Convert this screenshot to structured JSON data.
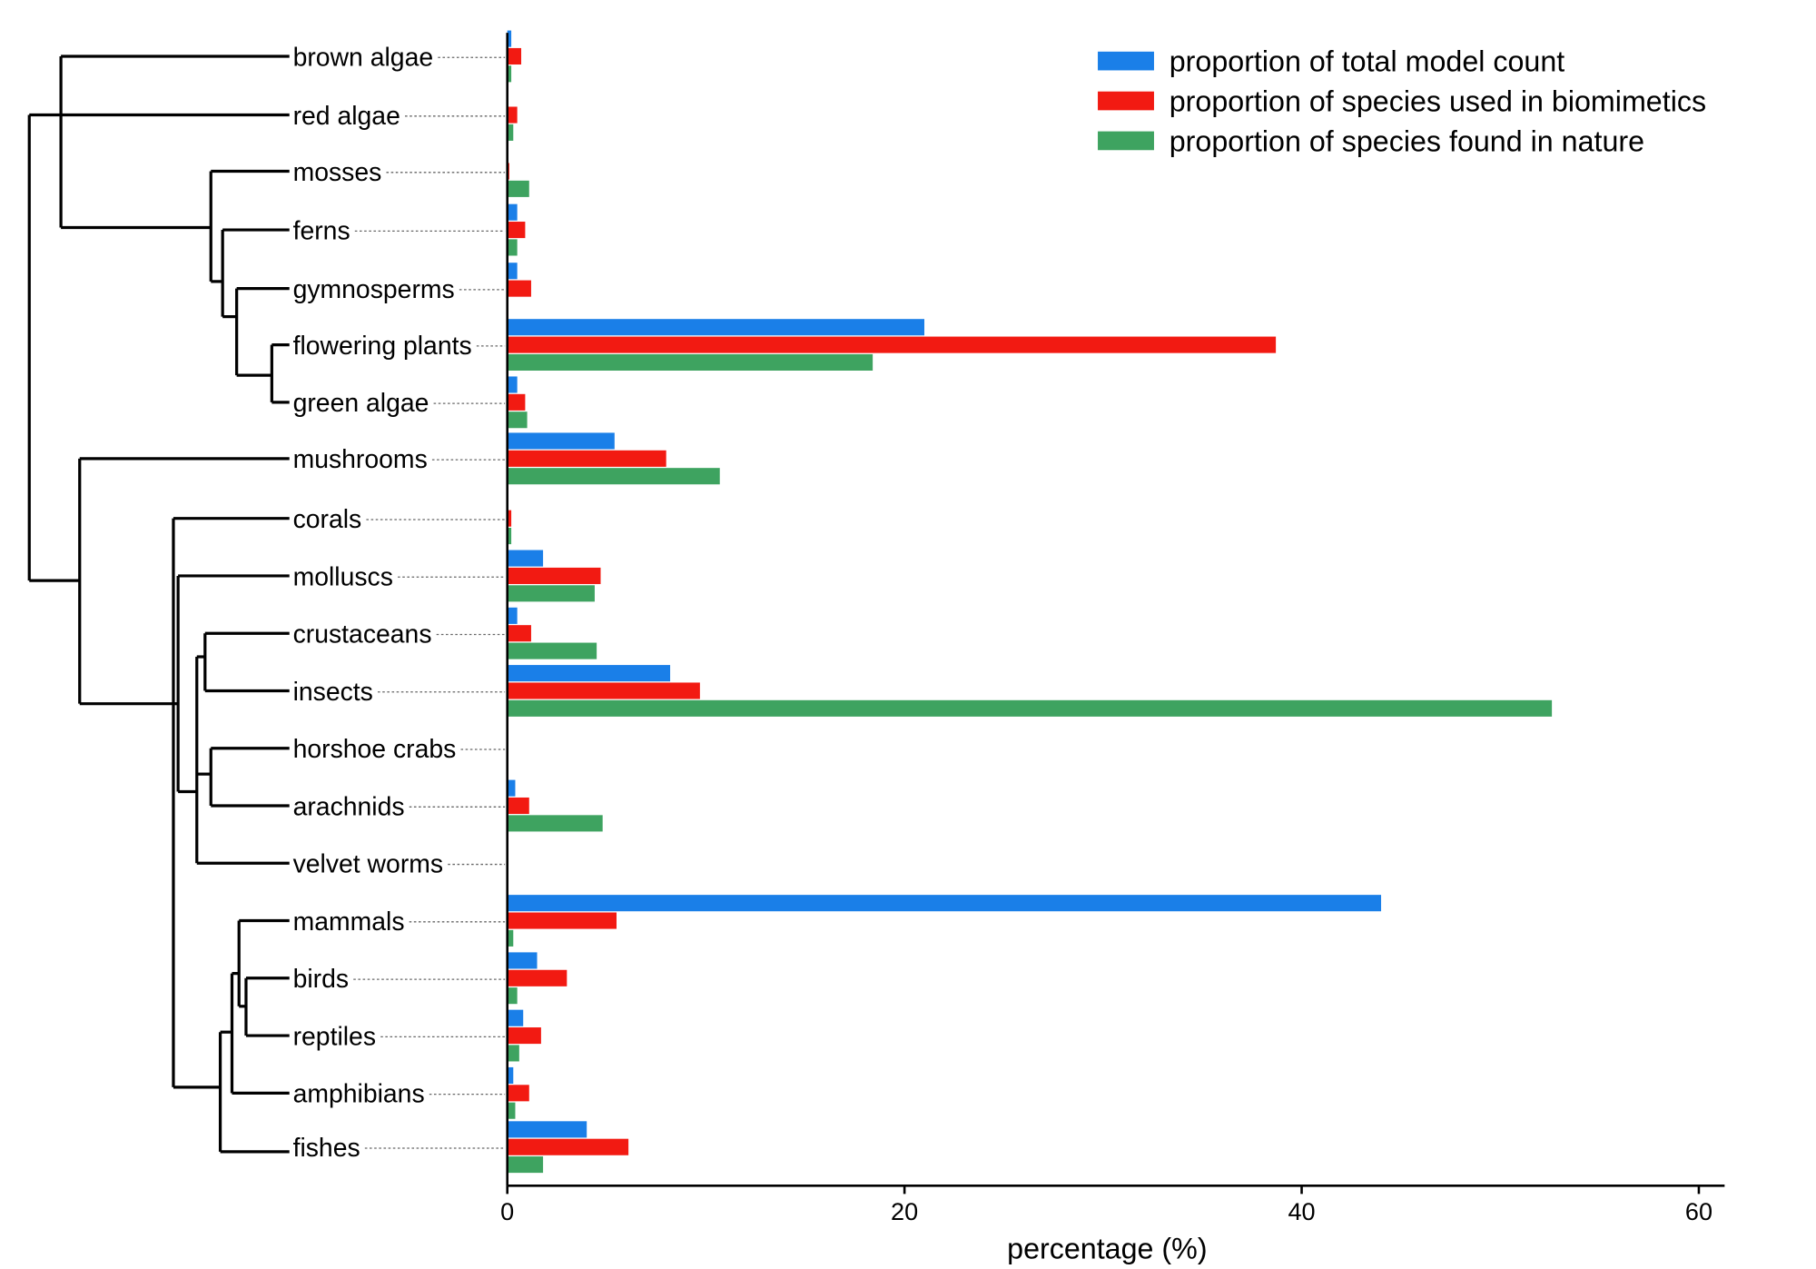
{
  "chart_data": {
    "type": "bar",
    "orientation": "horizontal",
    "xlabel": "percentage (%)",
    "xlim": [
      0,
      60
    ],
    "xticks": [
      "0",
      "20",
      "40",
      "60"
    ],
    "categories": [
      "brown algae",
      "red algae",
      "mosses",
      "ferns",
      "gymnosperms",
      "flowering plants",
      "green algae",
      "mushrooms",
      "corals",
      "molluscs",
      "crustaceans",
      "insects",
      "horshoe crabs",
      "arachnids",
      "velvet worms",
      "mammals",
      "birds",
      "reptiles",
      "amphibians",
      "fishes"
    ],
    "series": [
      {
        "name": "proportion of total model count",
        "color": "#1a7fe8",
        "values": [
          0.2,
          0,
          0,
          0.5,
          0.5,
          21.0,
          0.5,
          5.4,
          0,
          1.8,
          0.5,
          8.2,
          0,
          0.4,
          0,
          44.0,
          1.5,
          0.8,
          0.3,
          4.0
        ]
      },
      {
        "name": "proportion of species used in biomimetics",
        "color": "#f21a12",
        "values": [
          0.7,
          0.5,
          0.1,
          0.9,
          1.2,
          38.7,
          0.9,
          8.0,
          0.2,
          4.7,
          1.2,
          9.7,
          0,
          1.1,
          0,
          5.5,
          3.0,
          1.7,
          1.1,
          6.1
        ]
      },
      {
        "name": "proportion of species found in nature",
        "color": "#3ea360",
        "values": [
          0.2,
          0.3,
          1.1,
          0.5,
          0,
          18.4,
          1.0,
          10.7,
          0.2,
          4.4,
          4.5,
          52.6,
          0,
          4.8,
          0,
          0.3,
          0.5,
          0.6,
          0.4,
          1.8
        ]
      }
    ],
    "legend_position": "top-right",
    "grid": false
  }
}
